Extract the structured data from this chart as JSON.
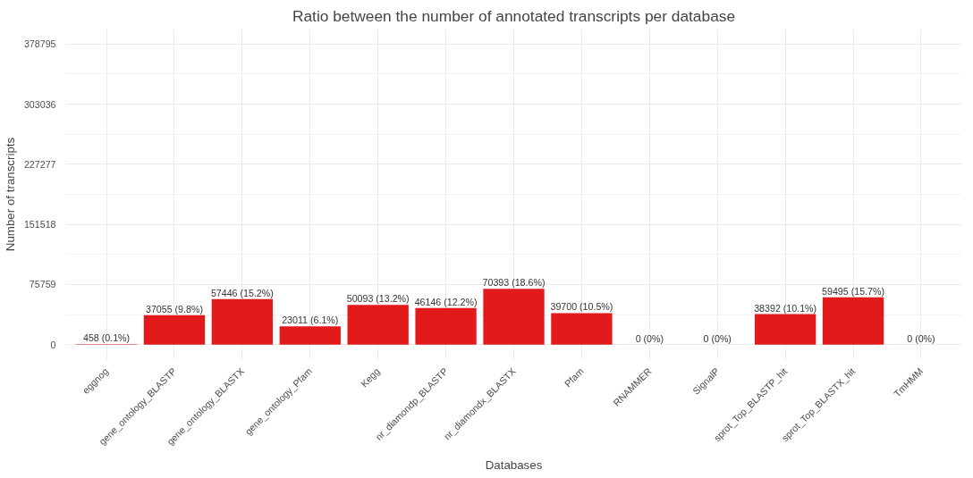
{
  "chart_data": {
    "type": "bar",
    "title": "Ratio between the number of annotated transcripts per database",
    "xlabel": "Databases",
    "ylabel": "Number of transcripts",
    "categories": [
      "eggnog",
      "gene_ontology_BLASTP",
      "gene_ontology_BLASTX",
      "gene_ontology_Pfam",
      "Kegg",
      "nr_diamondp_BLASTP",
      "nr_diamondx_BLASTX",
      "Pfam",
      "RNAMMER",
      "SignalP",
      "sprot_Top_BLASTP_hit",
      "sprot_Top_BLASTX_hit",
      "TmHMM"
    ],
    "values": [
      458,
      37055,
      57446,
      23011,
      50093,
      46146,
      70393,
      39700,
      0,
      0,
      38392,
      59495,
      0
    ],
    "value_labels": [
      "458 (0.1%)",
      "37055 (9.8%)",
      "57446 (15.2%)",
      "23011 (6.1%)",
      "50093 (13.2%)",
      "46146 (12.2%)",
      "70393 (18.6%)",
      "39700 (10.5%)",
      "0 (0%)",
      "0 (0%)",
      "38392 (10.1%)",
      "59495 (15.7%)",
      "0 (0%)"
    ],
    "color": "#e31a1c",
    "ylim": [
      -18940,
      397735
    ],
    "yticks": [
      0,
      75759,
      151518,
      227277,
      303036,
      378795
    ],
    "grid": true
  }
}
